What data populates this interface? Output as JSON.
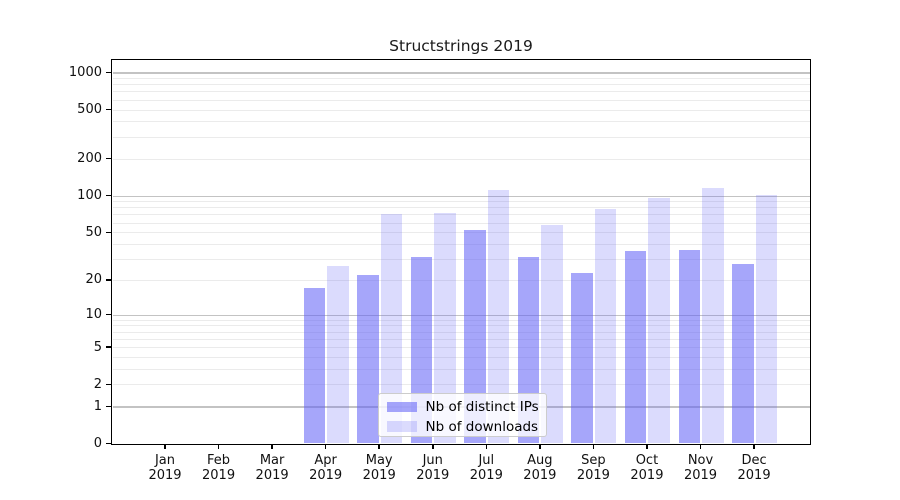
{
  "title": "Structstrings 2019",
  "chart_data": {
    "type": "bar",
    "categories": [
      "Jan 2019",
      "Feb 2019",
      "Mar 2019",
      "Apr 2019",
      "May 2019",
      "Jun 2019",
      "Jul 2019",
      "Aug 2019",
      "Sep 2019",
      "Oct 2019",
      "Nov 2019",
      "Dec 2019"
    ],
    "series": [
      {
        "name": "Nb of distinct IPs",
        "color": "rgba(93,93,245,0.55)",
        "values": [
          0,
          0,
          0,
          17,
          22,
          31,
          52,
          31,
          23,
          35,
          36,
          27
        ]
      },
      {
        "name": "Nb of downloads",
        "color": "rgba(93,93,245,0.22)",
        "values": [
          0,
          0,
          0,
          26,
          70,
          72,
          112,
          57,
          77,
          96,
          116,
          102
        ]
      }
    ],
    "yscale": "log1p",
    "yticks": [
      0,
      1,
      2,
      5,
      10,
      20,
      50,
      100,
      200,
      500,
      1000
    ],
    "ylim": [
      0,
      1260
    ],
    "xlabel": "",
    "ylabel": "",
    "grid": "on",
    "legend_position": "lower center"
  },
  "colors": {
    "major_gridline": "#c3c3c3",
    "minor_gridline": "#ebebeb",
    "axis": "#000000",
    "text": "#1a1a1a",
    "legend_bg": "rgba(255,255,255,0.8)",
    "legend_border": "#cccccc"
  }
}
